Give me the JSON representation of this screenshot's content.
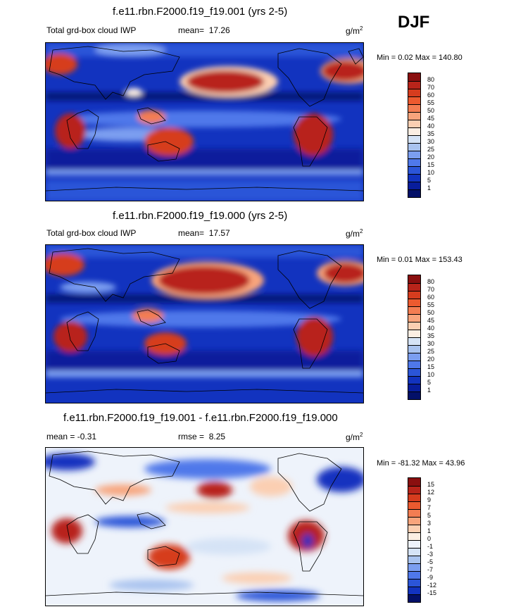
{
  "season": "DJF",
  "panels": [
    {
      "title": "f.e11.rbn.F2000.f19_f19.001 (yrs 2-5)",
      "left_label": "Total grd-box cloud IWP",
      "stat_label": "mean=",
      "stat_value": "17.26",
      "units_base": "g/m",
      "units_exp": "2",
      "minmax": "Min =   0.02 Max = 140.80"
    },
    {
      "title": "f.e11.rbn.F2000.f19_f19.000 (yrs 2-5)",
      "left_label": "Total grd-box cloud IWP",
      "stat_label": "mean=",
      "stat_value": "17.57",
      "units_base": "g/m",
      "units_exp": "2",
      "minmax": "Min =   0.01 Max = 153.43"
    },
    {
      "title": "f.e11.rbn.F2000.f19_f19.001 - f.e11.rbn.F2000.f19_f19.000",
      "left_label": "mean =  -0.31",
      "stat_label": "rmse =",
      "stat_value": "8.25",
      "units_base": "g/m",
      "units_exp": "2",
      "minmax": "Min = -81.32 Max =  43.96"
    }
  ],
  "colorbars": {
    "field": {
      "labels": [
        "80",
        "70",
        "60",
        "55",
        "50",
        "45",
        "40",
        "35",
        "30",
        "25",
        "20",
        "15",
        "10",
        "5",
        "1"
      ],
      "colors": [
        "#8a0f0f",
        "#b8241a",
        "#d63c1e",
        "#ec5a2f",
        "#f37d52",
        "#f8a47c",
        "#fbcfb2",
        "#fbeee3",
        "#d5e3f6",
        "#a9c3ef",
        "#7b9ef0",
        "#4f78ea",
        "#2b55d8",
        "#1233bf",
        "#081d9c",
        "#031068"
      ]
    },
    "diff": {
      "labels": [
        "15",
        "12",
        "9",
        "7",
        "5",
        "3",
        "1",
        "0",
        "-1",
        "-3",
        "-5",
        "-7",
        "-9",
        "-12",
        "-15"
      ],
      "colors": [
        "#8a0f0f",
        "#b8241a",
        "#d63c1e",
        "#ec5a2f",
        "#f37d52",
        "#f8a47c",
        "#fbcfb2",
        "#fbeee3",
        "#eef3fb",
        "#d5e3f6",
        "#a9c3ef",
        "#7b9ef0",
        "#4f78ea",
        "#2b55d8",
        "#1233bf",
        "#031068"
      ]
    }
  },
  "chart_data": [
    {
      "type": "heatmap",
      "title": "f.e11.rbn.F2000.f19_f19.001 (yrs 2-5)",
      "variable": "Total grd-box cloud IWP",
      "units": "g/m2",
      "mean": 17.26,
      "min": 0.02,
      "max": 140.8,
      "levels": [
        1,
        5,
        10,
        15,
        20,
        25,
        30,
        35,
        40,
        45,
        50,
        55,
        60,
        70,
        80
      ]
    },
    {
      "type": "heatmap",
      "title": "f.e11.rbn.F2000.f19_f19.000 (yrs 2-5)",
      "variable": "Total grd-box cloud IWP",
      "units": "g/m2",
      "mean": 17.57,
      "min": 0.01,
      "max": 153.43,
      "levels": [
        1,
        5,
        10,
        15,
        20,
        25,
        30,
        35,
        40,
        45,
        50,
        55,
        60,
        70,
        80
      ]
    },
    {
      "type": "heatmap",
      "title": "f.e11.rbn.F2000.f19_f19.001 - f.e11.rbn.F2000.f19_f19.000",
      "units": "g/m2",
      "mean": -0.31,
      "rmse": 8.25,
      "min": -81.32,
      "max": 43.96,
      "levels": [
        -15,
        -12,
        -9,
        -7,
        -5,
        -3,
        -1,
        0,
        1,
        3,
        5,
        7,
        9,
        12,
        15
      ]
    }
  ]
}
